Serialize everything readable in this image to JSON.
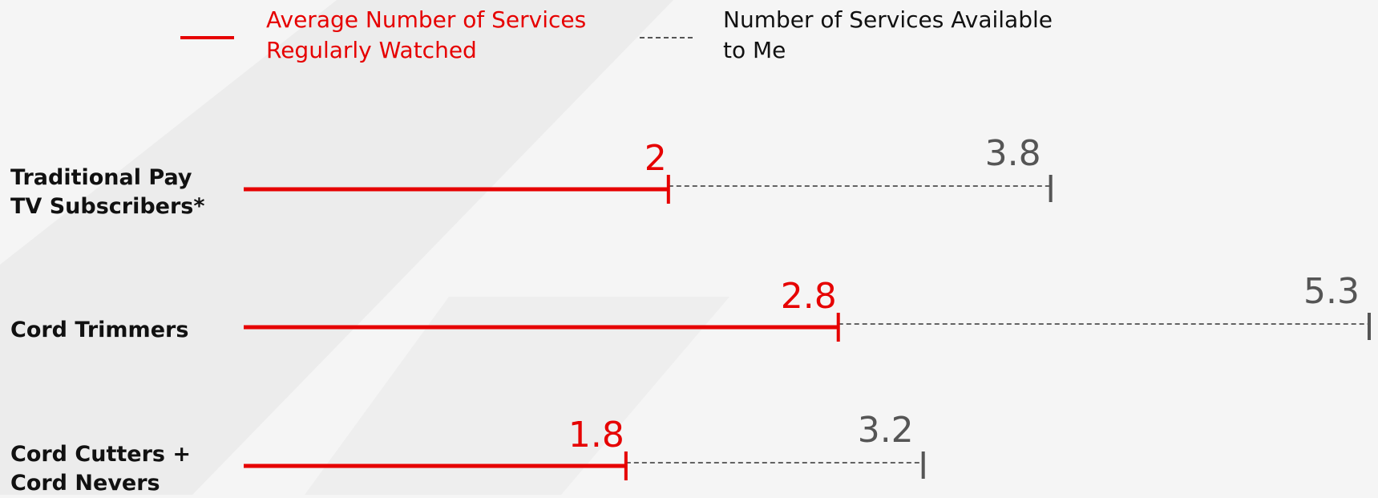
{
  "chart_data": {
    "type": "dumbbell-bar",
    "categories": [
      "Traditional Pay TV Subscribers*",
      "Cord Trimmers",
      "Cord Cutters + Cord Nevers"
    ],
    "series": [
      {
        "name": "Average Number of Services Regularly Watched",
        "color": "#e60000",
        "line": "solid",
        "values": [
          2,
          2.8,
          1.8
        ]
      },
      {
        "name": "Number of Services Available to Me",
        "color": "#555555",
        "line": "dashed",
        "values": [
          3.8,
          5.3,
          3.2
        ]
      }
    ]
  }
}
